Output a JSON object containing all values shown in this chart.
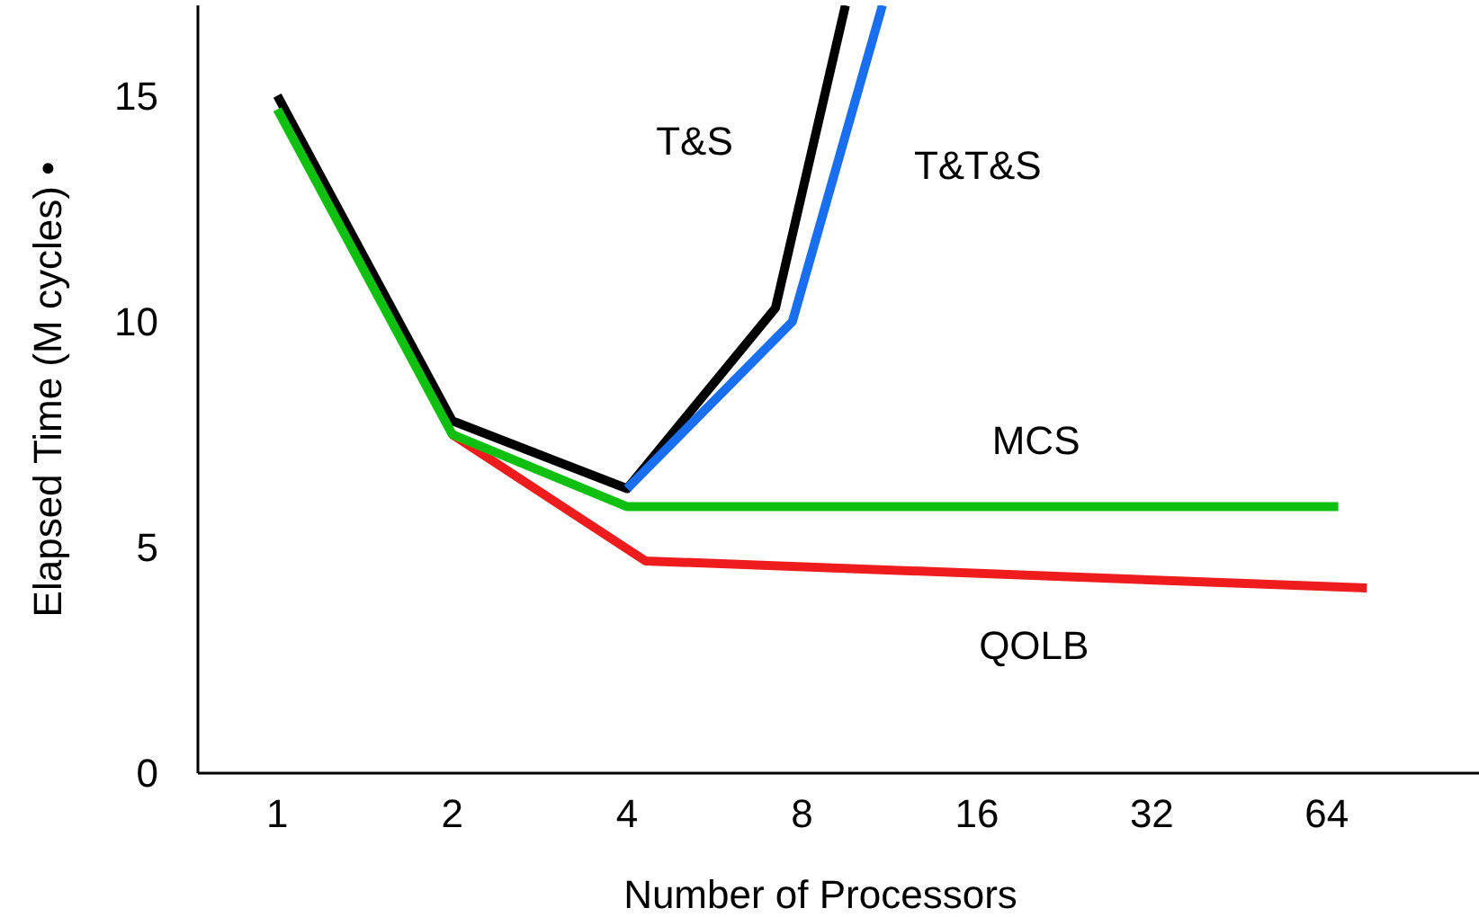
{
  "chart_data": {
    "type": "line",
    "xlabel": "Number of Processors",
    "ylabel": "Elapsed Time (M cycles) •",
    "log": "x",
    "xlim": [
      0.73,
      117
    ],
    "xticks": [
      1,
      2,
      4,
      8,
      16,
      32,
      64
    ],
    "ylim": [
      0,
      17
    ],
    "yticks": [
      0,
      5,
      10,
      15
    ],
    "grid": false,
    "marker": "none",
    "line_style": "solid",
    "series": [
      {
        "name": "T&S",
        "color": "#000000",
        "x": [
          1,
          2,
          4,
          7.2,
          9.5
        ],
        "values": [
          15.0,
          7.8,
          6.3,
          10.3,
          17
        ]
      },
      {
        "name": "T&T&S",
        "color": "#1a6ff0",
        "x": [
          4,
          7.7,
          11
        ],
        "values": [
          6.3,
          10.0,
          17
        ]
      },
      {
        "name": "QOLB",
        "color": "#ee1c1c",
        "x": [
          2,
          4.3,
          75
        ],
        "values": [
          7.5,
          4.7,
          4.1
        ]
      },
      {
        "name": "MCS",
        "color": "#10c010",
        "x": [
          1,
          2,
          4,
          67
        ],
        "values": [
          14.7,
          7.5,
          5.9,
          5.9
        ]
      }
    ]
  }
}
